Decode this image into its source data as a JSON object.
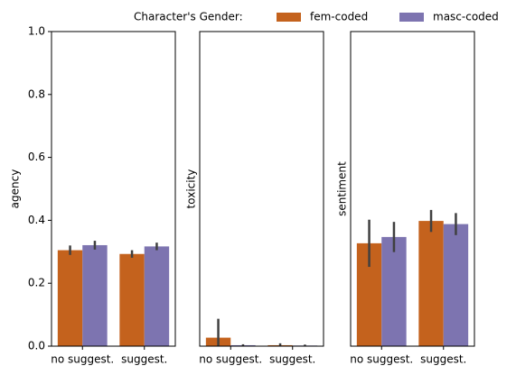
{
  "chart_data": [
    {
      "type": "bar",
      "legend_title": "Character's Gender:",
      "ylabel": "agency",
      "categories": [
        "no suggest.",
        "suggest."
      ],
      "series": [
        {
          "name": "fem-coded",
          "color": "#c4621d",
          "values": [
            0.305,
            0.293
          ],
          "errors": [
            0.015,
            0.012
          ]
        },
        {
          "name": "masc-coded",
          "color": "#7d74b0",
          "values": [
            0.321,
            0.317
          ],
          "errors": [
            0.014,
            0.012
          ]
        }
      ],
      "ylim": [
        0,
        1.0
      ],
      "yticks": [
        {
          "value": 0,
          "label": "0.0"
        },
        0.2,
        0.4,
        0.6,
        0.8,
        {
          "value": 1,
          "label": "1.0"
        }
      ]
    },
    {
      "type": "bar",
      "ylabel": "toxicity",
      "categories": [
        "no suggest.",
        "suggest."
      ],
      "series": [
        {
          "color": "#c4621d",
          "values": [
            0.027,
            0.003
          ],
          "errors": [
            0.06,
            0.006
          ]
        },
        {
          "color": "#7d74b0",
          "values": [
            0.003,
            0.002
          ],
          "errors": [
            0.003,
            0.003
          ]
        }
      ],
      "ylim": [
        0,
        1.0
      ]
    },
    {
      "type": "bar",
      "ylabel": "sentiment",
      "categories": [
        "no suggest.",
        "suggest."
      ],
      "series": [
        {
          "color": "#c4621d",
          "values": [
            0.327,
            0.398
          ],
          "errors": [
            0.075,
            0.035
          ]
        },
        {
          "color": "#7d74b0",
          "values": [
            0.347,
            0.388
          ],
          "errors": [
            0.048,
            0.035
          ]
        }
      ],
      "ylim": [
        0,
        1.0
      ]
    }
  ]
}
